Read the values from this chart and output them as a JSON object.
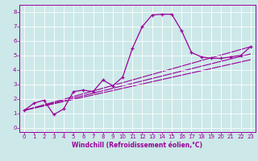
{
  "xlabel": "Windchill (Refroidissement éolien,°C)",
  "bg_color": "#cce8e8",
  "grid_color": "#ffffff",
  "line_color": "#990099",
  "xlim": [
    -0.5,
    23.5
  ],
  "ylim": [
    -0.3,
    8.5
  ],
  "xticks": [
    0,
    1,
    2,
    3,
    4,
    5,
    6,
    7,
    8,
    9,
    10,
    11,
    12,
    13,
    14,
    15,
    16,
    17,
    18,
    19,
    20,
    21,
    22,
    23
  ],
  "yticks": [
    0,
    1,
    2,
    3,
    4,
    5,
    6,
    7,
    8
  ],
  "curve1_x": [
    0,
    1,
    2,
    3,
    4,
    5,
    6,
    7,
    8,
    9,
    10,
    11,
    12,
    13,
    14,
    15,
    16,
    17,
    18,
    19,
    20,
    21,
    22,
    23
  ],
  "curve1_y": [
    1.2,
    1.7,
    1.9,
    0.9,
    1.3,
    2.5,
    2.6,
    2.5,
    3.3,
    2.9,
    3.5,
    5.5,
    7.0,
    7.8,
    7.85,
    7.85,
    6.7,
    5.2,
    4.9,
    4.8,
    4.8,
    4.9,
    5.0,
    5.6
  ],
  "line2_x": [
    0,
    23
  ],
  "line2_y": [
    1.2,
    5.6
  ],
  "line3_x": [
    0,
    23
  ],
  "line3_y": [
    1.2,
    5.1
  ],
  "line4_x": [
    0,
    23
  ],
  "line4_y": [
    1.2,
    4.7
  ],
  "font_size": 5.0,
  "xlabel_fontsize": 5.5,
  "lw_main": 0.9,
  "lw_ref": 0.8
}
